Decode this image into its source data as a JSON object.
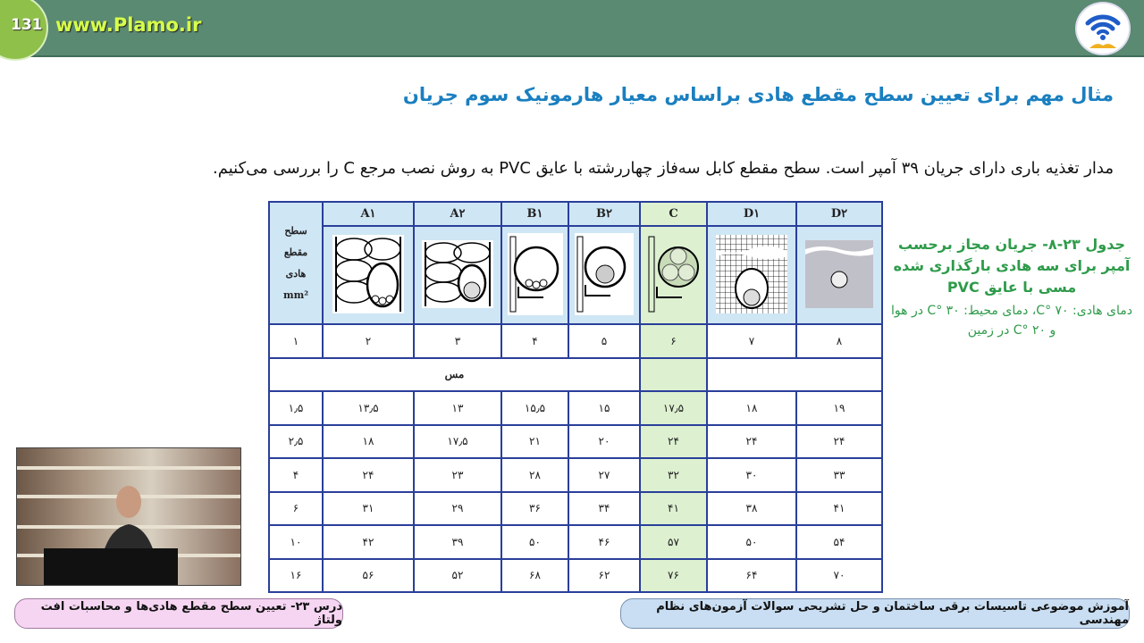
{
  "header": {
    "page_number": "131",
    "site": "www.Plamo.ir",
    "logo": "wifi-book-logo"
  },
  "title": "مثال مهم برای تعیین سطح مقطع هادی براساس معیار هارمونیک سوم جریان",
  "intro": "مدار تغذیه باری دارای جریان ۳۹ آمپر است. سطح مقطع کابل سه‌فاز چهاررشته با عایق PVC به روش نصب مرجع C را بررسی می‌کنیم.",
  "table": {
    "corner_header": [
      "سطح",
      "مقطع",
      "هادی",
      "mm²"
    ],
    "methods": [
      "A۱",
      "A۲",
      "B۱",
      "B۲",
      "C",
      "D۱",
      "D۲"
    ],
    "column_numbers": [
      "۱",
      "۲",
      "۳",
      "۴",
      "۵",
      "۶",
      "۷",
      "۸"
    ],
    "material": "مس",
    "highlight_color": "#ddf0d0",
    "rows": [
      [
        "۱٫۵",
        "۱۳٫۵",
        "۱۳",
        "۱۵٫۵",
        "۱۵",
        "۱۷٫۵",
        "۱۸",
        "۱۹"
      ],
      [
        "۲٫۵",
        "۱۸",
        "۱۷٫۵",
        "۲۱",
        "۲۰",
        "۲۴",
        "۲۴",
        "۲۴"
      ],
      [
        "۴",
        "۲۴",
        "۲۳",
        "۲۸",
        "۲۷",
        "۳۲",
        "۳۰",
        "۳۳"
      ],
      [
        "۶",
        "۳۱",
        "۲۹",
        "۳۶",
        "۳۴",
        "۴۱",
        "۳۸",
        "۴۱"
      ],
      [
        "۱۰",
        "۴۲",
        "۳۹",
        "۵۰",
        "۴۶",
        "۵۷",
        "۵۰",
        "۵۴"
      ],
      [
        "۱۶",
        "۵۶",
        "۵۲",
        "۶۸",
        "۶۲",
        "۷۶",
        "۶۴",
        "۷۰"
      ]
    ]
  },
  "caption": {
    "title": "جدول ۲۳-۸- جریان مجاز برحسب آمپر برای سه هادی بارگذاری شده مسی با عایق PVC",
    "subtitle": "دمای هادی: ۷۰ °C، دمای محیط: ۳۰ °C در هوا و ۲۰ °C در زمین"
  },
  "footer": {
    "lesson": "درس ۲۳- تعیین سطح مقطع هادی‌ها و محاسبات افت ولتاژ",
    "course": "آموزش موضوعی تاسیسات برقی ساختمان و حل تشریحی سوالات آزمون‌های نظام مهندسی"
  }
}
